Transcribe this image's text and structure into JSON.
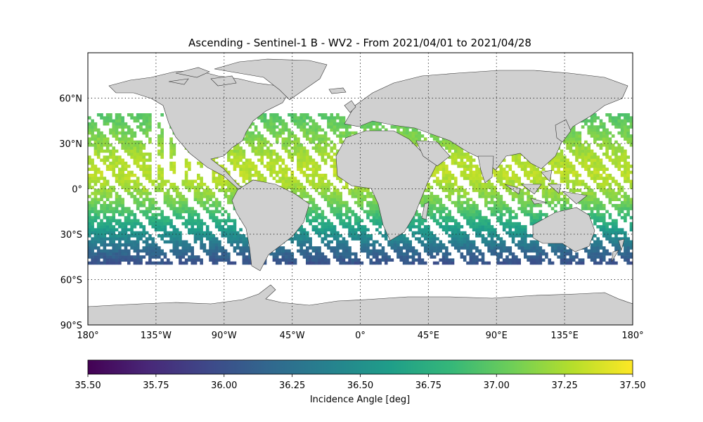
{
  "title": "Ascending - Sentinel-1 B - WV2 - From 2021/04/01 to 2021/04/28",
  "map": {
    "lon_range": [
      -180,
      180
    ],
    "lat_range": [
      -90,
      90
    ],
    "lat_ticks": [
      {
        "value": 60,
        "label": "60°N"
      },
      {
        "value": 30,
        "label": "30°N"
      },
      {
        "value": 0,
        "label": "0°"
      },
      {
        "value": -30,
        "label": "30°S"
      },
      {
        "value": -60,
        "label": "60°S"
      },
      {
        "value": -90,
        "label": "90°S"
      }
    ],
    "lon_ticks": [
      {
        "value": -180,
        "label": "180°"
      },
      {
        "value": -135,
        "label": "135°W"
      },
      {
        "value": -90,
        "label": "90°W"
      },
      {
        "value": -45,
        "label": "45°W"
      },
      {
        "value": 0,
        "label": "0°"
      },
      {
        "value": 45,
        "label": "45°E"
      },
      {
        "value": 90,
        "label": "90°E"
      },
      {
        "value": 135,
        "label": "135°E"
      },
      {
        "value": 180,
        "label": "180°"
      }
    ],
    "gridlines": "dotted",
    "land_color": "#d0d0d0",
    "ocean_color": "#ffffff"
  },
  "colorbar": {
    "label": "Incidence Angle [deg]",
    "min": 35.5,
    "max": 37.5,
    "ticks": [
      "35.50",
      "35.75",
      "36.00",
      "36.25",
      "36.50",
      "36.75",
      "37.00",
      "37.25",
      "37.50"
    ],
    "colormap": "viridis",
    "stops": [
      "#440154",
      "#482878",
      "#3e4989",
      "#31688e",
      "#26828e",
      "#1f9e89",
      "#35b779",
      "#6ece58",
      "#b5de2b",
      "#fde725"
    ]
  },
  "chart_data": {
    "type": "heatmap",
    "title": "Ascending - Sentinel-1 B - WV2 - From 2021/04/01 to 2021/04/28",
    "variable": "Incidence Angle [deg]",
    "coverage_lat_range": [
      -50,
      50
    ],
    "value_by_latitude": [
      {
        "lat": 50,
        "value": 36.95
      },
      {
        "lat": 40,
        "value": 37.05
      },
      {
        "lat": 30,
        "value": 37.15
      },
      {
        "lat": 20,
        "value": 37.25
      },
      {
        "lat": 10,
        "value": 37.3
      },
      {
        "lat": 0,
        "value": 37.2
      },
      {
        "lat": -10,
        "value": 37.05
      },
      {
        "lat": -20,
        "value": 36.8
      },
      {
        "lat": -30,
        "value": 36.5
      },
      {
        "lat": -40,
        "value": 36.2
      },
      {
        "lat": -50,
        "value": 36.0
      }
    ]
  }
}
